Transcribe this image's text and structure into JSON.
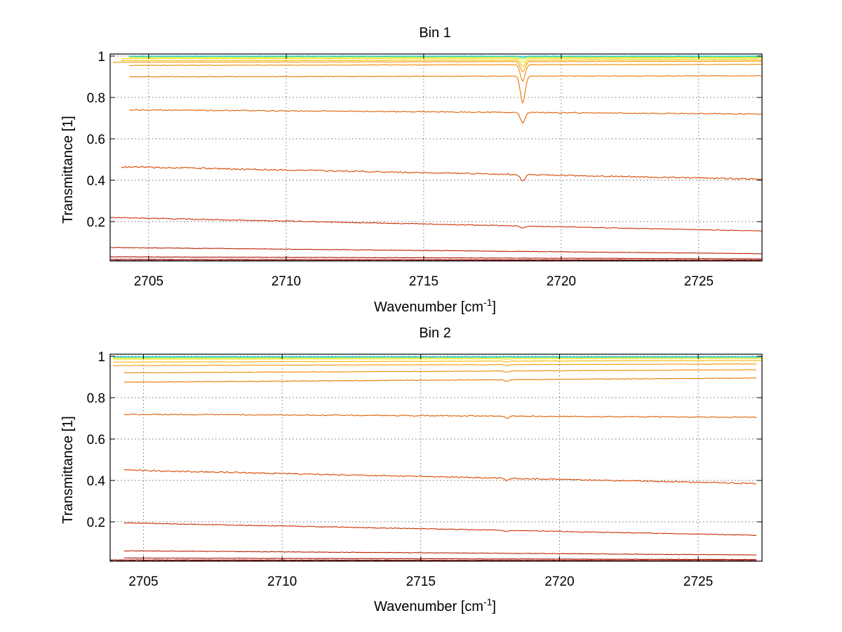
{
  "chart_data": [
    {
      "type": "line",
      "title": "Bin 1",
      "xlabel": "Wavenumber [cm",
      "xlabel_sup": "-1",
      "xlabel_end": "]",
      "ylabel": "Transmittance [1]",
      "xlim": [
        2703.6,
        2727.3
      ],
      "ylim": [
        0.01,
        1.01
      ],
      "xticks": [
        2705,
        2710,
        2715,
        2720,
        2725
      ],
      "yticks": [
        0.2,
        0.4,
        0.6,
        0.8,
        1
      ],
      "ytick_labels": [
        "0.2",
        "0.4",
        "0.6",
        "0.8",
        "1"
      ],
      "grid": true,
      "absorption_line": {
        "x": 2718.6,
        "width": 0.12
      },
      "series": [
        {
          "color": "#1ec8e6",
          "x": [
            2704.3,
            2727.3
          ],
          "y": [
            1.0,
            1.0
          ],
          "dip": 0.004
        },
        {
          "color": "#50e0a8",
          "x": [
            2704.3,
            2727.3
          ],
          "y": [
            0.998,
            0.998
          ],
          "dip": 0.006
        },
        {
          "color": "#c0ee28",
          "x": [
            2704.3,
            2727.3
          ],
          "y": [
            0.994,
            0.994
          ],
          "dip": 0.01
        },
        {
          "color": "#f0e000",
          "x": [
            2704.0,
            2727.3
          ],
          "y": [
            0.988,
            0.99
          ],
          "dip": 0.02
        },
        {
          "color": "#f8b800",
          "x": [
            2704.0,
            2727.3
          ],
          "y": [
            0.978,
            0.982
          ],
          "dip": 0.03
        },
        {
          "color": "#f49a00",
          "x": [
            2703.7,
            2727.3
          ],
          "y": [
            0.97,
            0.975
          ],
          "dip": 0.05
        },
        {
          "color": "#ee8a00",
          "x": [
            2704.3,
            2727.3
          ],
          "y": [
            0.955,
            0.96
          ],
          "dip": 0.08
        },
        {
          "color": "#e87800",
          "x": [
            2704.3,
            2727.3
          ],
          "y": [
            0.9,
            0.905
          ],
          "dip": 0.13
        },
        {
          "color": "#e06000",
          "x": [
            2704.3,
            2727.3
          ],
          "y": [
            0.74,
            0.72
          ],
          "dip": 0.05
        },
        {
          "color": "#d84800",
          "x": [
            2704.0,
            2727.3
          ],
          "y": [
            0.465,
            0.405
          ],
          "dip": 0.03
        },
        {
          "color": "#c83000",
          "x": [
            2703.6,
            2727.3
          ],
          "y": [
            0.22,
            0.155
          ],
          "dip": 0.01
        },
        {
          "color": "#b82000",
          "x": [
            2703.6,
            2727.3
          ],
          "y": [
            0.075,
            0.045
          ],
          "dip": 0.0
        },
        {
          "color": "#a81000",
          "x": [
            2703.6,
            2727.3
          ],
          "y": [
            0.03,
            0.02
          ],
          "dip": 0.0
        },
        {
          "color": "#980800",
          "x": [
            2703.6,
            2727.3
          ],
          "y": [
            0.018,
            0.014
          ],
          "dip": 0.0
        },
        {
          "color": "#880000",
          "x": [
            2703.6,
            2727.3
          ],
          "y": [
            0.012,
            0.011
          ],
          "dip": 0.0
        }
      ]
    },
    {
      "type": "line",
      "title": "Bin 2",
      "xlabel": "Wavenumber [cm",
      "xlabel_sup": "-1",
      "xlabel_end": "]",
      "ylabel": "Transmittance [1]",
      "xlim": [
        2703.8,
        2727.3
      ],
      "ylim": [
        0.01,
        1.01
      ],
      "xticks": [
        2705,
        2710,
        2715,
        2720,
        2725
      ],
      "yticks": [
        0.2,
        0.4,
        0.6,
        0.8,
        1
      ],
      "ytick_labels": [
        "0.2",
        "0.4",
        "0.6",
        "0.8",
        "1"
      ],
      "grid": true,
      "absorption_line": {
        "x": 2718.1,
        "width": 0.12
      },
      "series": [
        {
          "color": "#1ec8e6",
          "x": [
            2703.9,
            2727.3
          ],
          "y": [
            0.998,
            0.998
          ],
          "dip": 0.0
        },
        {
          "color": "#50e0a8",
          "x": [
            2703.9,
            2727.3
          ],
          "y": [
            0.996,
            0.996
          ],
          "dip": 0.0
        },
        {
          "color": "#c0ee28",
          "x": [
            2703.9,
            2727.3
          ],
          "y": [
            0.992,
            0.995
          ],
          "dip": 0.0
        },
        {
          "color": "#f0e000",
          "x": [
            2703.9,
            2727.3
          ],
          "y": [
            0.986,
            0.99
          ],
          "dip": 0.003
        },
        {
          "color": "#f8b800",
          "x": [
            2703.9,
            2727.3
          ],
          "y": [
            0.972,
            0.98
          ],
          "dip": 0.004
        },
        {
          "color": "#f49a00",
          "x": [
            2703.9,
            2727.1
          ],
          "y": [
            0.955,
            0.963
          ],
          "dip": 0.005
        },
        {
          "color": "#ee8a00",
          "x": [
            2704.3,
            2727.1
          ],
          "y": [
            0.92,
            0.935
          ],
          "dip": 0.006
        },
        {
          "color": "#e87800",
          "x": [
            2704.3,
            2727.1
          ],
          "y": [
            0.875,
            0.895
          ],
          "dip": 0.008
        },
        {
          "color": "#e06000",
          "x": [
            2704.3,
            2727.1
          ],
          "y": [
            0.72,
            0.705
          ],
          "dip": 0.01
        },
        {
          "color": "#d84800",
          "x": [
            2704.3,
            2727.1
          ],
          "y": [
            0.45,
            0.385
          ],
          "dip": 0.01
        },
        {
          "color": "#c83000",
          "x": [
            2704.3,
            2727.1
          ],
          "y": [
            0.195,
            0.135
          ],
          "dip": 0.005
        },
        {
          "color": "#b82000",
          "x": [
            2704.3,
            2727.1
          ],
          "y": [
            0.06,
            0.04
          ],
          "dip": 0.0
        },
        {
          "color": "#a81000",
          "x": [
            2704.3,
            2727.1
          ],
          "y": [
            0.025,
            0.018
          ],
          "dip": 0.0
        },
        {
          "color": "#980800",
          "x": [
            2703.8,
            2727.1
          ],
          "y": [
            0.016,
            0.013
          ],
          "dip": 0.0
        },
        {
          "color": "#880000",
          "x": [
            2703.8,
            2727.1
          ],
          "y": [
            0.011,
            0.011
          ],
          "dip": 0.0
        }
      ]
    }
  ]
}
